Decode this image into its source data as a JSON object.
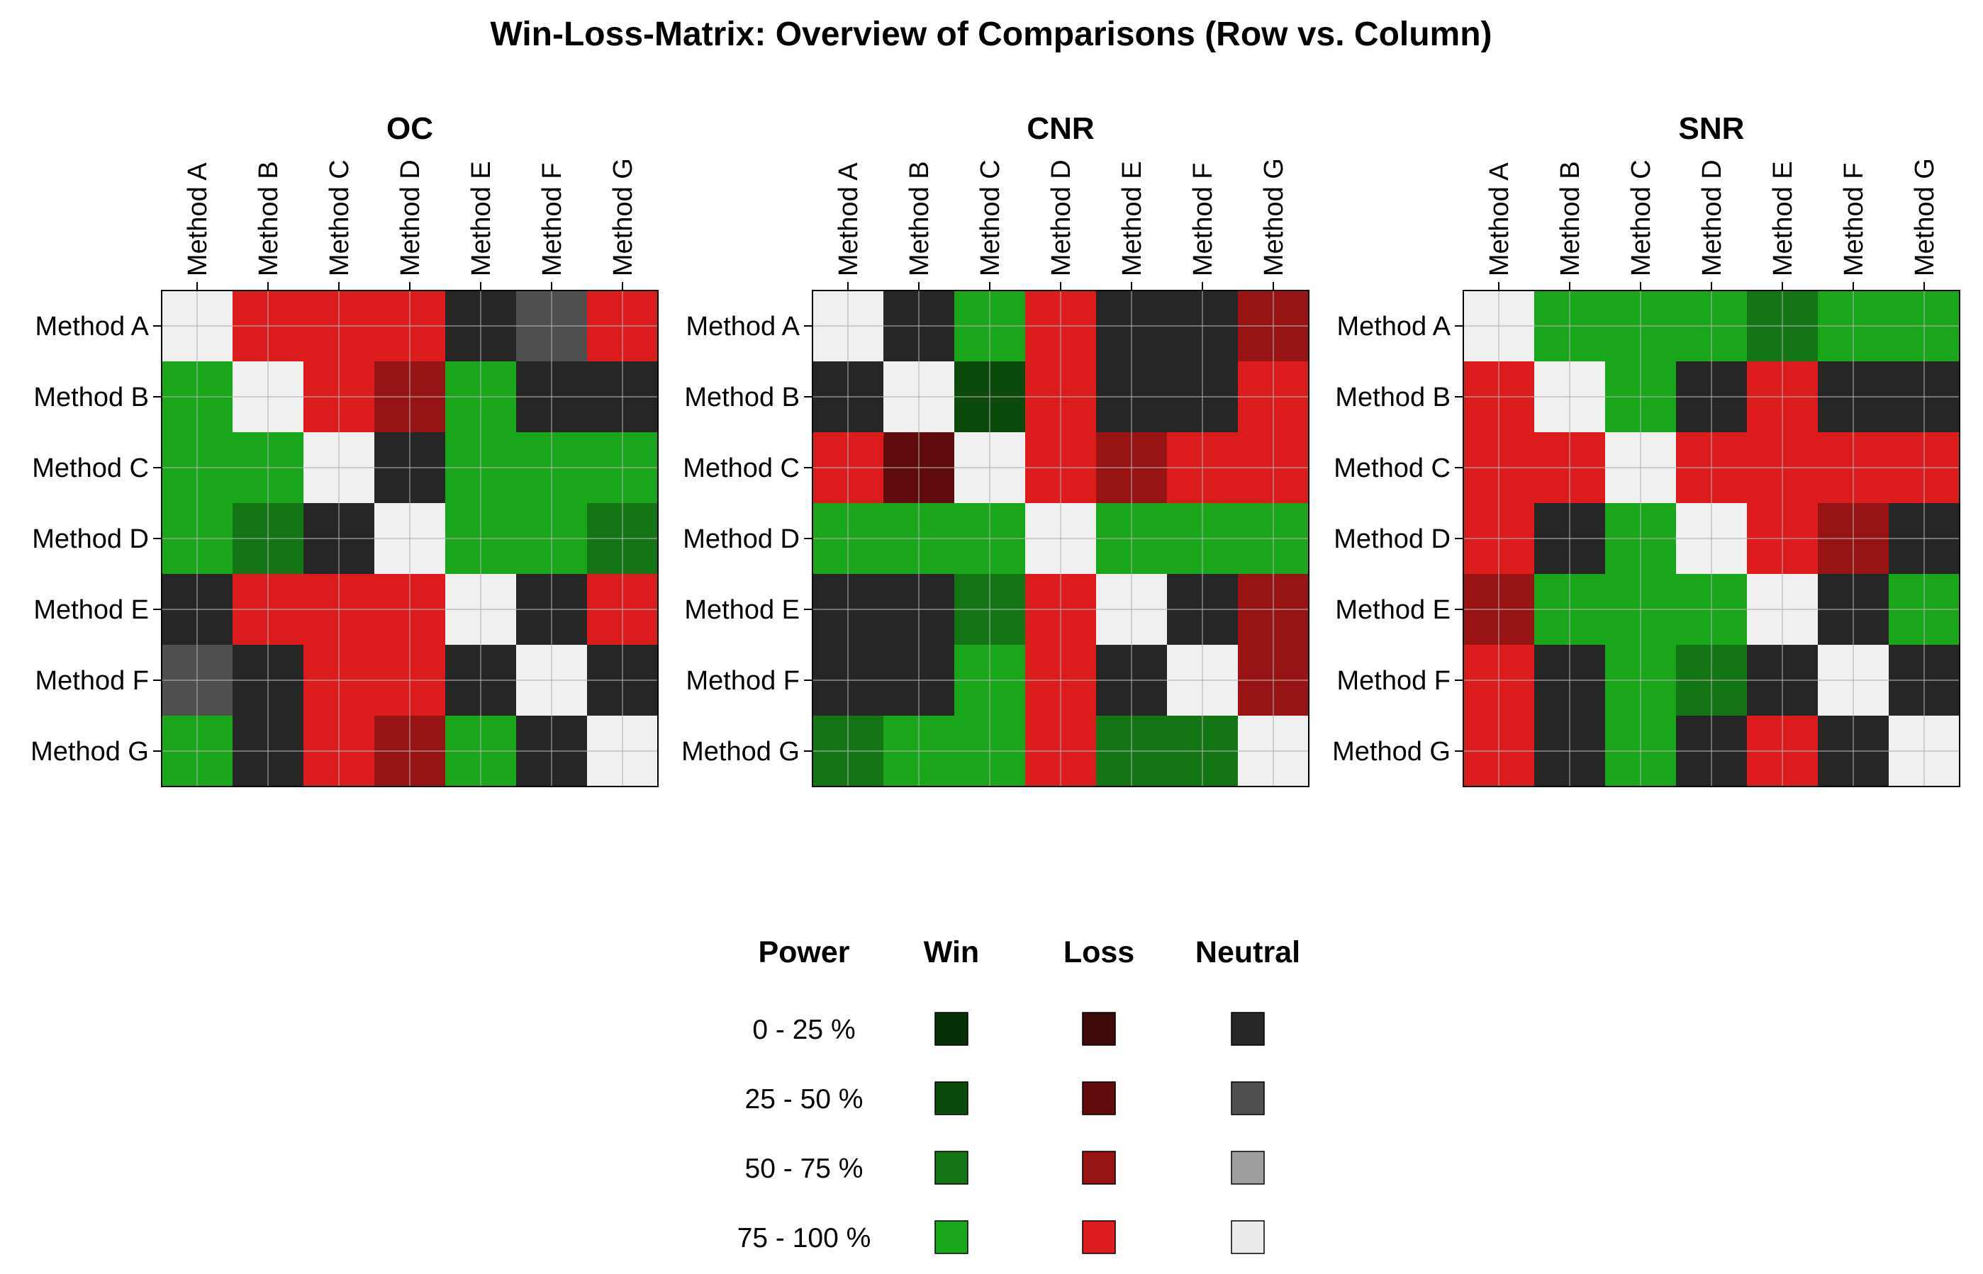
{
  "chart_data": {
    "type": "heatmap",
    "title": "Win-Loss-Matrix: Overview of Comparisons (Row vs. Column)",
    "methods": [
      "Method A",
      "Method B",
      "Method C",
      "Method D",
      "Method E",
      "Method F",
      "Method G"
    ],
    "cell_codes": {
      "X": "diagonal",
      "W1": "Win 0 - 25 %",
      "W2": "Win 25 - 50 %",
      "W3": "Win 50 - 75 %",
      "W4": "Win 75 - 100 %",
      "L1": "Loss 0 - 25 %",
      "L2": "Loss 25 - 50 %",
      "L3": "Loss 50 - 75 %",
      "L4": "Loss 75 - 100 %",
      "N1": "Neutral 0 - 25 %",
      "N2": "Neutral 25 - 50 %",
      "N3": "Neutral 50 - 75 %",
      "N4": "Neutral 75 - 100 %"
    },
    "panels": [
      {
        "title": "OC",
        "matrix": [
          [
            "X",
            "L4",
            "L4",
            "L4",
            "N1",
            "N2",
            "L4"
          ],
          [
            "W4",
            "X",
            "L4",
            "L3",
            "W4",
            "N1",
            "N1"
          ],
          [
            "W4",
            "W4",
            "X",
            "N1",
            "W4",
            "W4",
            "W4"
          ],
          [
            "W4",
            "W3",
            "N1",
            "X",
            "W4",
            "W4",
            "W3"
          ],
          [
            "N1",
            "L4",
            "L4",
            "L4",
            "X",
            "N1",
            "L4"
          ],
          [
            "N2",
            "N1",
            "L4",
            "L4",
            "N1",
            "X",
            "N1"
          ],
          [
            "W4",
            "N1",
            "L4",
            "L3",
            "W4",
            "N1",
            "X"
          ]
        ]
      },
      {
        "title": "CNR",
        "matrix": [
          [
            "X",
            "N1",
            "W4",
            "L4",
            "N1",
            "N1",
            "L3"
          ],
          [
            "N1",
            "X",
            "W2",
            "L4",
            "N1",
            "N1",
            "L4"
          ],
          [
            "L4",
            "L2",
            "X",
            "L4",
            "L3",
            "L4",
            "L4"
          ],
          [
            "W4",
            "W4",
            "W4",
            "X",
            "W4",
            "W4",
            "W4"
          ],
          [
            "N1",
            "N1",
            "W3",
            "L4",
            "X",
            "N1",
            "L3"
          ],
          [
            "N1",
            "N1",
            "W4",
            "L4",
            "N1",
            "X",
            "L3"
          ],
          [
            "W3",
            "W4",
            "W4",
            "L4",
            "W3",
            "W3",
            "X"
          ]
        ]
      },
      {
        "title": "SNR",
        "matrix": [
          [
            "X",
            "W4",
            "W4",
            "W4",
            "W3",
            "W4",
            "W4"
          ],
          [
            "L4",
            "X",
            "W4",
            "N1",
            "L4",
            "N1",
            "N1"
          ],
          [
            "L4",
            "L4",
            "X",
            "L4",
            "L4",
            "L4",
            "L4"
          ],
          [
            "L4",
            "N1",
            "W4",
            "X",
            "L4",
            "L3",
            "N1"
          ],
          [
            "L3",
            "W4",
            "W4",
            "W4",
            "X",
            "N1",
            "W4"
          ],
          [
            "L4",
            "N1",
            "W4",
            "W3",
            "N1",
            "X",
            "N1"
          ],
          [
            "L4",
            "N1",
            "W4",
            "N1",
            "L4",
            "N1",
            "X"
          ]
        ]
      }
    ],
    "legend": {
      "headers": [
        "Power",
        "Win",
        "Loss",
        "Neutral"
      ],
      "levels": [
        "0 - 25 %",
        "25 - 50 %",
        "50 - 75 %",
        "75 - 100 %"
      ]
    },
    "colors": {
      "X": "#f0f0f0",
      "W1": "#063006",
      "W2": "#0c4a0c",
      "W3": "#147514",
      "W4": "#1aa61a",
      "L1": "#3d0909",
      "L2": "#600c0c",
      "L3": "#981414",
      "L4": "#dc1c1c",
      "N1": "#262626",
      "N2": "#4f4f4f",
      "N3": "#9e9e9e",
      "N4": "#ebebeb"
    },
    "grid": true
  }
}
